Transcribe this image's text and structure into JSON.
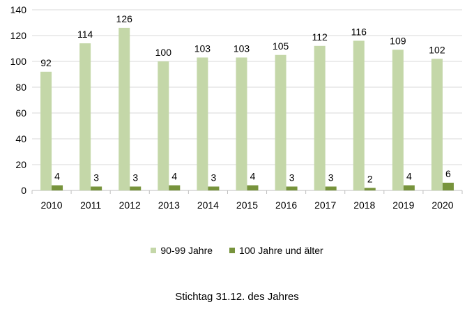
{
  "chart_data": {
    "type": "bar",
    "categories": [
      "2010",
      "2011",
      "2012",
      "2013",
      "2014",
      "2015",
      "2016",
      "2017",
      "2018",
      "2019",
      "2020"
    ],
    "series": [
      {
        "name": "90-99 Jahre",
        "values": [
          92,
          114,
          126,
          100,
          103,
          103,
          105,
          112,
          116,
          109,
          102
        ],
        "color": "#c4d7a8"
      },
      {
        "name": "100 Jahre und älter",
        "values": [
          4,
          3,
          3,
          4,
          3,
          4,
          3,
          3,
          2,
          4,
          6
        ],
        "color": "#77933c"
      }
    ],
    "yticks": [
      "0",
      "20",
      "40",
      "60",
      "80",
      "100",
      "120",
      "140"
    ],
    "ylim": [
      0,
      140
    ],
    "grid": true,
    "legend_position": "bottom",
    "caption": "Stichtag 31.12. des Jahres"
  }
}
